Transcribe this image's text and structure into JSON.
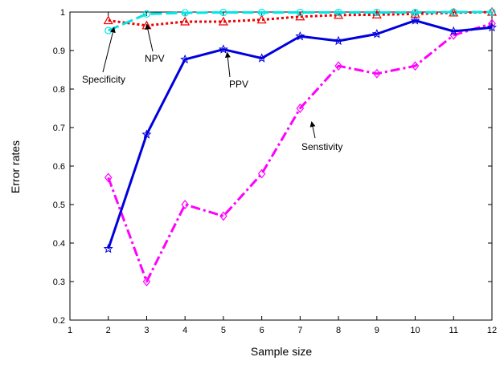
{
  "chart_data": {
    "type": "line",
    "title": "",
    "xlabel": "Sample size",
    "ylabel": "Error rates",
    "xlim": [
      1,
      12
    ],
    "ylim": [
      0.2,
      1.0
    ],
    "xticks": [
      1,
      2,
      3,
      4,
      5,
      6,
      7,
      8,
      9,
      10,
      11,
      12
    ],
    "yticks": [
      0.2,
      0.3,
      0.4,
      0.5,
      0.6,
      0.7,
      0.8,
      0.9,
      1.0
    ],
    "ytick_labels": [
      "0.2",
      "0.3",
      "0.4",
      "0.5",
      "0.6",
      "0.7",
      "0.8",
      "0.9",
      "1"
    ],
    "grid": false,
    "legend": "none",
    "x": [
      2,
      3,
      4,
      5,
      6,
      7,
      8,
      9,
      10,
      11,
      12
    ],
    "series": [
      {
        "name": "Specificity",
        "color": "#00e5e5",
        "line_style": "dashed",
        "marker": "circle",
        "values": [
          0.952,
          0.995,
          0.998,
          0.999,
          0.999,
          0.999,
          0.999,
          0.999,
          0.999,
          1.0,
          1.0
        ]
      },
      {
        "name": "NPV",
        "color": "#ee0000",
        "line_style": "dotted",
        "marker": "triangle",
        "values": [
          0.978,
          0.965,
          0.975,
          0.975,
          0.98,
          0.988,
          0.992,
          0.993,
          0.995,
          0.998,
          1.0
        ]
      },
      {
        "name": "PPV",
        "color": "#0000dd",
        "line_style": "solid",
        "marker": "star",
        "values": [
          0.385,
          0.682,
          0.877,
          0.903,
          0.88,
          0.937,
          0.925,
          0.943,
          0.978,
          0.95,
          0.96
        ]
      },
      {
        "name": "Senstivity",
        "color": "#ff00ff",
        "line_style": "dashdot",
        "marker": "diamond",
        "values": [
          0.57,
          0.3,
          0.5,
          0.47,
          0.58,
          0.75,
          0.86,
          0.84,
          0.86,
          0.94,
          0.97
        ]
      }
    ],
    "annotations": [
      {
        "text": "Specificity",
        "target": [
          2.15,
          0.96
        ]
      },
      {
        "text": "NPV",
        "target": [
          3.0,
          0.968
        ]
      },
      {
        "text": "PPV",
        "target": [
          5.1,
          0.895
        ]
      },
      {
        "text": "Senstivity",
        "target": [
          7.3,
          0.715
        ]
      }
    ]
  }
}
